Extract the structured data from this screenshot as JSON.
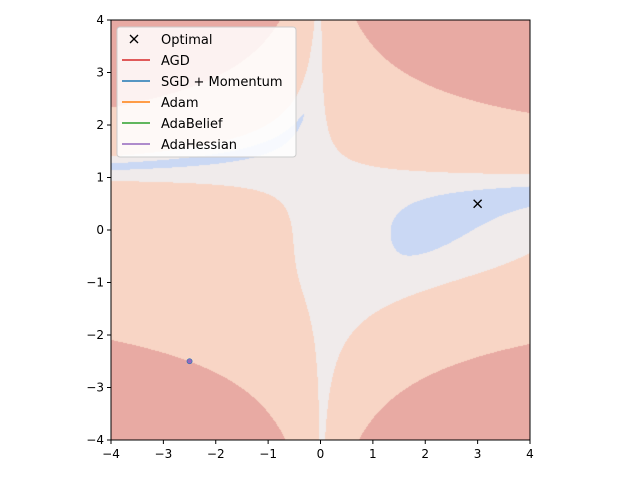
{
  "chart_data": {
    "type": "contour",
    "title": "",
    "xlabel": "",
    "ylabel": "",
    "xlim": [
      -4,
      4
    ],
    "ylim": [
      -4,
      4
    ],
    "grid": false,
    "xticks": [
      -4,
      -3,
      -2,
      -1,
      0,
      1,
      2,
      3,
      4
    ],
    "yticks": [
      -4,
      -3,
      -2,
      -1,
      0,
      1,
      2,
      3,
      4
    ],
    "xtick_labels": [
      "−4",
      "−3",
      "−2",
      "−1",
      "0",
      "1",
      "2",
      "3",
      "4"
    ],
    "ytick_labels": [
      "−4",
      "−3",
      "−2",
      "−1",
      "0",
      "1",
      "2",
      "3",
      "4"
    ],
    "surface": "Beale",
    "contour_colors": [
      "#cad8f4",
      "#f0ebeb",
      "#f8d5c5",
      "#e8aaa3"
    ],
    "optimal": {
      "x": 3,
      "y": 0.5
    },
    "start": {
      "x": -2.5,
      "y": -2.5
    },
    "legend_location": "upper-left",
    "legend": [
      {
        "label": "Optimal",
        "marker": "x",
        "color": "#000000"
      },
      {
        "label": "AGD",
        "marker": "line",
        "color": "#d62728"
      },
      {
        "label": "SGD + Momentum",
        "marker": "line",
        "color": "#1f77b4"
      },
      {
        "label": "Adam",
        "marker": "line",
        "color": "#ff7f0e"
      },
      {
        "label": "AdaBelief",
        "marker": "line",
        "color": "#2ca02c"
      },
      {
        "label": "AdaHessian",
        "marker": "line",
        "color": "#9467bd"
      }
    ]
  }
}
